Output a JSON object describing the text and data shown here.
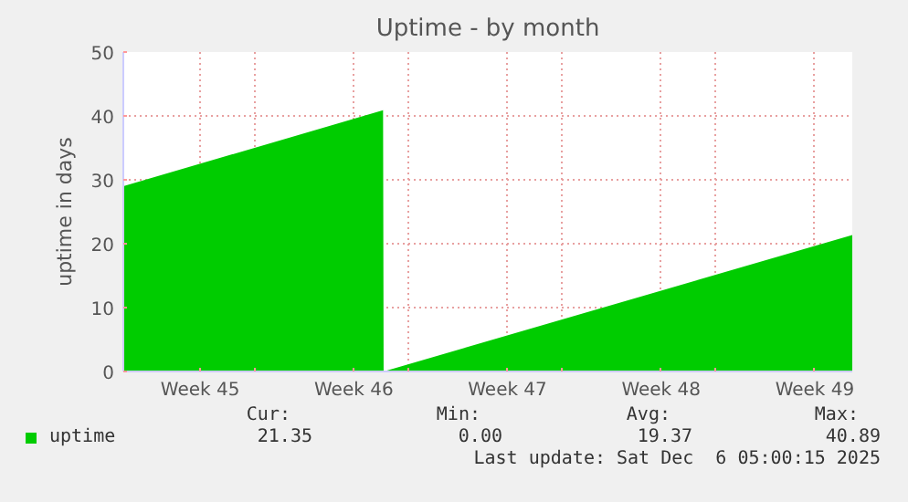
{
  "chart_data": {
    "type": "area",
    "title": "Uptime - by month",
    "ylabel": "uptime in days",
    "x": [
      "2025-11-03T00:00",
      "2025-11-14T20:00",
      "2025-11-14T20:15",
      "2025-11-14T20:36",
      "2025-12-06T05:00"
    ],
    "series": [
      {
        "name": "uptime",
        "color": "#00cc00",
        "values": [
          29,
          40.89,
          null,
          0,
          21.35
        ]
      }
    ],
    "xlim": [
      "2025-11-03T00:00",
      "2025-12-06T05:00"
    ],
    "xticks": [
      {
        "value": "2025-11-06T12:00",
        "label": "Week 45"
      },
      {
        "value": "2025-11-09T00:00",
        "label": null
      },
      {
        "value": "2025-11-13T12:00",
        "label": "Week 46"
      },
      {
        "value": "2025-11-16T00:00",
        "label": null
      },
      {
        "value": "2025-11-20T12:00",
        "label": "Week 47"
      },
      {
        "value": "2025-11-23T00:00",
        "label": null
      },
      {
        "value": "2025-11-27T12:00",
        "label": "Week 48"
      },
      {
        "value": "2025-11-30T00:00",
        "label": null
      },
      {
        "value": "2025-12-04T12:00",
        "label": "Week 49"
      }
    ],
    "ylim": [
      0,
      50
    ],
    "yticks": [
      0,
      10,
      20,
      30,
      40,
      50
    ],
    "grid": true,
    "legend": "bottom left",
    "annotations": [
      "Cur:",
      "Min:",
      "Avg:",
      "Max:",
      "21.35",
      "0.00",
      "19.37",
      "40.89",
      "Last update: Sat Dec  6 05:00:15 2025"
    ]
  }
}
